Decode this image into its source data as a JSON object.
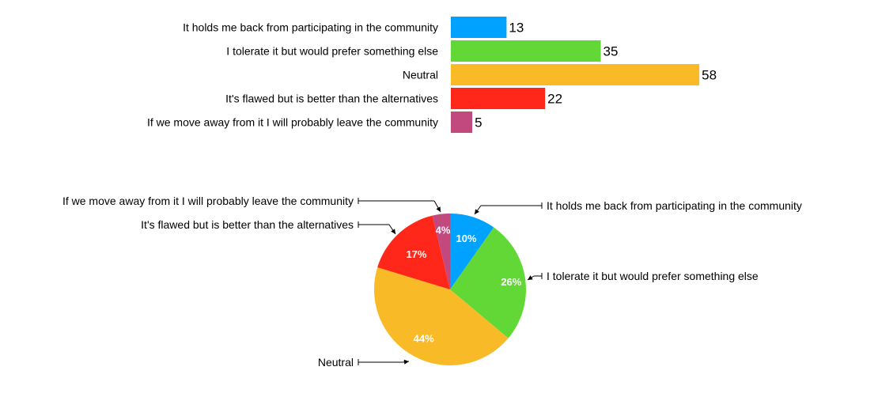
{
  "chart_data": [
    {
      "type": "bar",
      "orientation": "horizontal",
      "categories": [
        "It holds me back from participating in the community",
        "I tolerate it but would prefer something else",
        "Neutral",
        "It's flawed but is better than the alternatives",
        "If we move away from it I will probably leave the community"
      ],
      "values": [
        13,
        35,
        58,
        22,
        5
      ],
      "colors": [
        "#00a2ff",
        "#61d836",
        "#f8ba27",
        "#ff2719",
        "#c2497d"
      ],
      "data_labels": [
        "13",
        "35",
        "58",
        "22",
        "5"
      ],
      "grid": false,
      "legend": "none"
    },
    {
      "type": "pie",
      "categories": [
        "It holds me back from participating in the community",
        "I tolerate it but would prefer something else",
        "Neutral",
        "It's flawed but is better than the alternatives",
        "If we move away from it I will probably leave the community"
      ],
      "values": [
        13,
        35,
        58,
        22,
        5
      ],
      "percent_labels": [
        "10%",
        "26%",
        "44%",
        "17%",
        "4%"
      ],
      "colors": [
        "#00a2ff",
        "#61d836",
        "#f8ba27",
        "#ff2719",
        "#c2497d"
      ],
      "start_angle": "12 o'clock",
      "direction": "clockwise",
      "labels": "callouts with leader lines",
      "legend": "none"
    }
  ]
}
